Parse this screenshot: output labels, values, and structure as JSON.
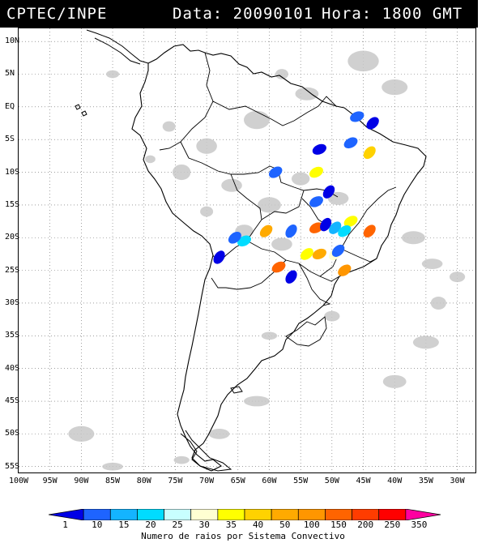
{
  "header": {
    "source": "CPTEC/INPE",
    "date_text": "Data: 20090101",
    "hour_text": "Hora: 1800 GMT"
  },
  "map": {
    "lat_labels": [
      "10N",
      "5N",
      "EQ",
      "5S",
      "10S",
      "15S",
      "20S",
      "25S",
      "30S",
      "35S",
      "40S",
      "45S",
      "50S",
      "55S"
    ],
    "lon_labels": [
      "100W",
      "95W",
      "90W",
      "85W",
      "80W",
      "75W",
      "70W",
      "65W",
      "60W",
      "55W",
      "50W",
      "45W",
      "40W",
      "35W",
      "30W"
    ],
    "cloud_color": "#c8c8c8",
    "border_color": "#000000"
  },
  "legend": {
    "title": "Numero de raios por Sistema Convectivo",
    "labels": [
      "1",
      "10",
      "15",
      "20",
      "25",
      "30",
      "35",
      "40",
      "50",
      "100",
      "150",
      "200",
      "250",
      "350"
    ],
    "colors": [
      "#0000e6",
      "#1e64ff",
      "#14b4ff",
      "#00dcff",
      "#c8ffff",
      "#ffffd2",
      "#ffff00",
      "#ffd200",
      "#ffaa00",
      "#ff9600",
      "#ff6400",
      "#ff3c00",
      "#ff0000",
      "#ff00a0"
    ]
  },
  "systems": [
    {
      "lon": -46,
      "lat": -1.5,
      "bin": 1
    },
    {
      "lon": -43.5,
      "lat": -2.5,
      "bin": 0
    },
    {
      "lon": -52,
      "lat": -6.5,
      "bin": 0
    },
    {
      "lon": -47,
      "lat": -5.5,
      "bin": 1
    },
    {
      "lon": -44,
      "lat": -7,
      "bin": 7
    },
    {
      "lon": -52.5,
      "lat": -10,
      "bin": 6
    },
    {
      "lon": -59,
      "lat": -10,
      "bin": 1
    },
    {
      "lon": -50.5,
      "lat": -13,
      "bin": 0
    },
    {
      "lon": -52.5,
      "lat": -14.5,
      "bin": 1
    },
    {
      "lon": -52.5,
      "lat": -18.5,
      "bin": 10
    },
    {
      "lon": -51,
      "lat": -18,
      "bin": 0
    },
    {
      "lon": -49.5,
      "lat": -18.5,
      "bin": 2
    },
    {
      "lon": -47,
      "lat": -17.5,
      "bin": 6
    },
    {
      "lon": -48,
      "lat": -19,
      "bin": 3
    },
    {
      "lon": -44,
      "lat": -19,
      "bin": 10
    },
    {
      "lon": -60.5,
      "lat": -19,
      "bin": 8
    },
    {
      "lon": -56.5,
      "lat": -19,
      "bin": 1
    },
    {
      "lon": -64,
      "lat": -20.5,
      "bin": 3
    },
    {
      "lon": -65.5,
      "lat": -20,
      "bin": 1
    },
    {
      "lon": -52,
      "lat": -22.5,
      "bin": 8
    },
    {
      "lon": -54,
      "lat": -22.5,
      "bin": 6
    },
    {
      "lon": -49.5,
      "lat": -22.5,
      "bin": 5
    },
    {
      "lon": -58.5,
      "lat": -24.5,
      "bin": 10
    },
    {
      "lon": -48,
      "lat": -25,
      "bin": 9
    },
    {
      "lon": -56.5,
      "lat": -26,
      "bin": 0
    },
    {
      "lon": -68,
      "lat": -23,
      "bin": 0
    },
    {
      "lon": -49,
      "lat": -22,
      "bin": 1
    }
  ]
}
